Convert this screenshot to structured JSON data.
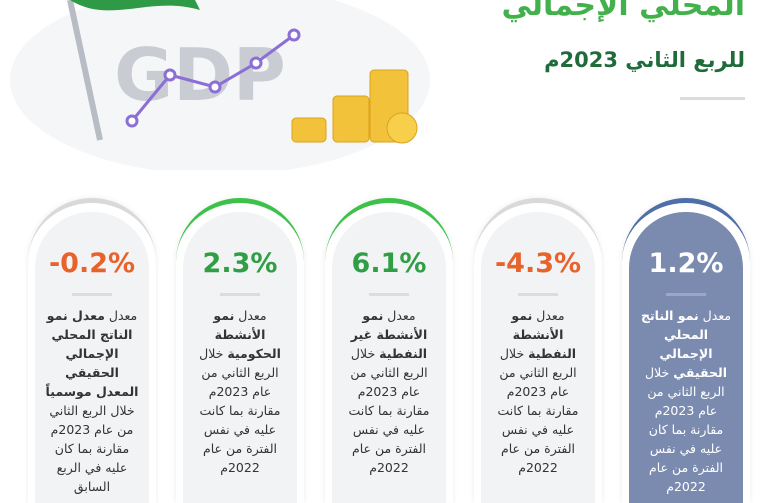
{
  "header": {
    "title": "المحلي الإجمالي",
    "subtitle": "للربع الثاني 2023م",
    "logo_text": "GDP"
  },
  "cards": [
    {
      "value": "1.2%",
      "text_before": "معدل ",
      "text_bold": "نمو الناتج المحلي الإجمالي الحقيقي",
      "text_after": " خلال الربع الثاني من عام 2023م مقارنة بما كان عليه في نفس الفترة من عام 2022م"
    },
    {
      "value": "-4.3%",
      "text_before": "معدل ",
      "text_bold": "نمو الأنشطة النفطية",
      "text_after": " خلال الربع الثاني من عام 2023م مقارنة بما كانت عليه في نفس الفترة من عام 2022م"
    },
    {
      "value": "6.1%",
      "text_before": "معدل ",
      "text_bold": "نمو الأنشطة غير النفطية",
      "text_after": " خلال الربع الثاني من عام 2023م مقارنة بما كانت عليه في نفس الفترة من عام 2022م"
    },
    {
      "value": "2.3%",
      "text_before": "معدل ",
      "text_bold": "نمو الأنشطة الحكومية",
      "text_after": " خلال الربع الثاني من عام 2023م مقارنة بما كانت عليه في نفس الفترة من عام 2022م"
    },
    {
      "value": "-0.2%",
      "text_before": "معدل ",
      "text_bold": "معدل نمو الناتج المحلي الإجمالي الحقيقي المعدل موسمياً",
      "text_after": " خلال الربع الثاني من عام 2023م مقارنة بما كان عليه في الربع السابق"
    }
  ]
}
